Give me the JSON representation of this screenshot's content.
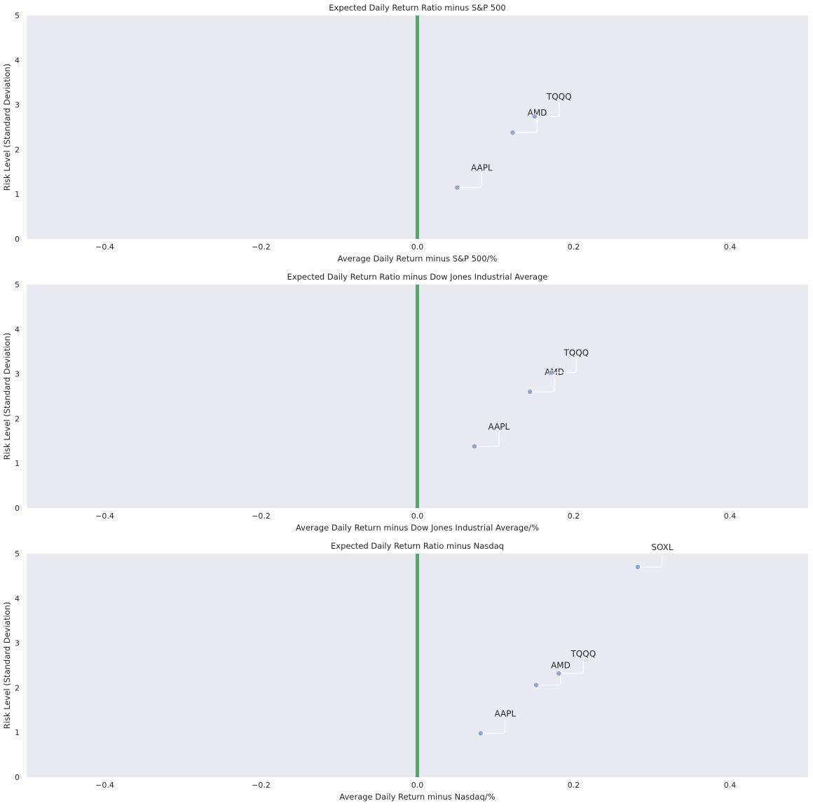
{
  "chart_data": [
    {
      "type": "scatter",
      "title": "Expected Daily Return Ratio minus S&P 500",
      "xlabel": "Average Daily Return minus S&P 500/%",
      "ylabel": "Risk Level (Standard Deviation)",
      "xlim": [
        -0.5,
        0.5
      ],
      "ylim": [
        0,
        5
      ],
      "xticks": [
        -0.4,
        -0.2,
        0.0,
        0.2,
        0.4
      ],
      "xtick_labels": [
        "−0.4",
        "−0.2",
        "0.0",
        "0.2",
        "0.4"
      ],
      "yticks": [
        0,
        1,
        2,
        3,
        4,
        5
      ],
      "ytick_labels": [
        "0",
        "1",
        "2",
        "3",
        "4",
        "5"
      ],
      "grid": false,
      "reference_line": {
        "x": 0.0,
        "color": "#55a868"
      },
      "point_color": "#8fa6d6",
      "points": [
        {
          "label": "AAPL",
          "x": 0.051,
          "y": 1.15
        },
        {
          "label": "AMD",
          "x": 0.122,
          "y": 2.38
        },
        {
          "label": "TQQQ",
          "x": 0.15,
          "y": 2.74
        }
      ]
    },
    {
      "type": "scatter",
      "title": "Expected Daily Return Ratio minus Dow Jones Industrial Average",
      "xlabel": "Average Daily Return minus Dow Jones Industrial Average/%",
      "ylabel": "Risk Level (Standard Deviation)",
      "xlim": [
        -0.5,
        0.5
      ],
      "ylim": [
        0,
        5
      ],
      "xticks": [
        -0.4,
        -0.2,
        0.0,
        0.2,
        0.4
      ],
      "xtick_labels": [
        "−0.4",
        "−0.2",
        "0.0",
        "0.2",
        "0.4"
      ],
      "yticks": [
        0,
        1,
        2,
        3,
        4,
        5
      ],
      "ytick_labels": [
        "0",
        "1",
        "2",
        "3",
        "4",
        "5"
      ],
      "grid": false,
      "reference_line": {
        "x": 0.0,
        "color": "#55a868"
      },
      "point_color": "#8fa6d6",
      "points": [
        {
          "label": "AAPL",
          "x": 0.073,
          "y": 1.38
        },
        {
          "label": "AMD",
          "x": 0.144,
          "y": 2.6
        },
        {
          "label": "TQQQ",
          "x": 0.172,
          "y": 3.03
        }
      ]
    },
    {
      "type": "scatter",
      "title": "Expected Daily Return Ratio minus Nasdaq",
      "xlabel": "Average Daily Return minus Nasdaq/%",
      "ylabel": "Risk Level (Standard Deviation)",
      "xlim": [
        -0.5,
        0.5
      ],
      "ylim": [
        0,
        5
      ],
      "xticks": [
        -0.4,
        -0.2,
        0.0,
        0.2,
        0.4
      ],
      "xtick_labels": [
        "−0.4",
        "−0.2",
        "0.0",
        "0.2",
        "0.4"
      ],
      "yticks": [
        0,
        1,
        2,
        3,
        4,
        5
      ],
      "ytick_labels": [
        "0",
        "1",
        "2",
        "3",
        "4",
        "5"
      ],
      "grid": false,
      "reference_line": {
        "x": 0.0,
        "color": "#55a868"
      },
      "point_color": "#8fa6d6",
      "points": [
        {
          "label": "AAPL",
          "x": 0.081,
          "y": 0.98
        },
        {
          "label": "AMD",
          "x": 0.152,
          "y": 2.06
        },
        {
          "label": "TQQQ",
          "x": 0.181,
          "y": 2.32
        },
        {
          "label": "SOXL",
          "x": 0.282,
          "y": 4.7
        }
      ]
    }
  ]
}
